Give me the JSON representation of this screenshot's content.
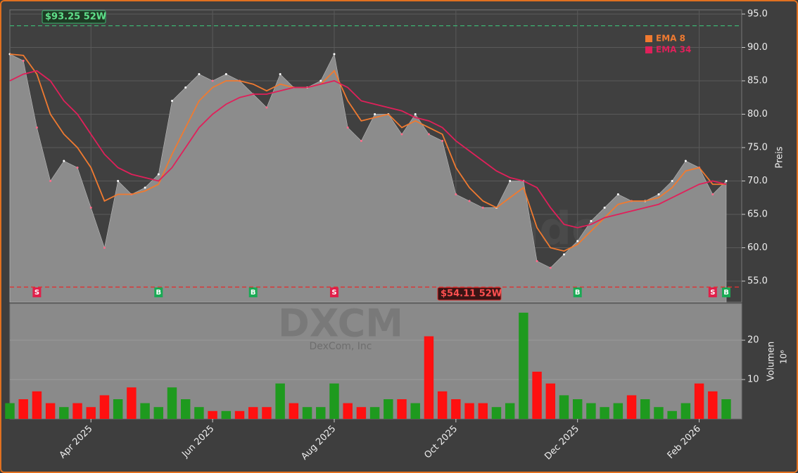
{
  "chart_data": {
    "type": "line",
    "ticker": "DXCM",
    "company": "DexCom, Inc",
    "watermark": "forexsignale.trade",
    "categories": [
      null,
      null,
      null,
      null,
      null,
      null,
      "Apr 2025",
      null,
      null,
      null,
      null,
      null,
      null,
      null,
      null,
      "Jun 2025",
      null,
      null,
      null,
      null,
      null,
      null,
      null,
      null,
      "Aug 2025",
      null,
      null,
      null,
      null,
      null,
      null,
      null,
      null,
      "Oct 2025",
      null,
      null,
      null,
      null,
      null,
      null,
      null,
      null,
      "Dec 2025",
      null,
      null,
      null,
      null,
      null,
      null,
      null,
      null,
      "Feb 2026",
      null,
      null
    ],
    "close": {
      "color": "#8c8c8c",
      "values": [
        89,
        88,
        78,
        70,
        73,
        72,
        66,
        60,
        70,
        68,
        69,
        71,
        82,
        84,
        86,
        85,
        86,
        85,
        83,
        81,
        86,
        84,
        84,
        85,
        89,
        78,
        76,
        80,
        80,
        77,
        80,
        77,
        76,
        68,
        67,
        66,
        66,
        70,
        70,
        58,
        57,
        59,
        61,
        64,
        66,
        68,
        67,
        67,
        68,
        70,
        73,
        72,
        68,
        70
      ]
    },
    "series": [
      {
        "name": "EMA 8",
        "color": "#f07a30",
        "values": [
          89,
          88.8,
          86,
          80,
          77,
          75,
          72,
          67,
          68,
          68,
          68.5,
          69.5,
          74,
          78,
          82,
          84,
          85,
          85,
          84.5,
          83.5,
          84.5,
          84,
          84,
          84.5,
          86.5,
          82,
          79,
          79.5,
          80,
          78,
          79,
          78,
          77,
          72,
          69,
          67,
          66,
          67.5,
          69,
          63,
          60,
          59.5,
          60.5,
          62.5,
          64.5,
          66.5,
          67,
          67,
          67.5,
          69,
          71.5,
          72,
          69.5,
          69.5
        ]
      },
      {
        "name": "EMA 34",
        "color": "#e0205a",
        "values": [
          85,
          86,
          86.5,
          85,
          82,
          80,
          77,
          74,
          72,
          71,
          70.5,
          70,
          72,
          75,
          78,
          80,
          81.5,
          82.5,
          83,
          83,
          83.5,
          84,
          84,
          84.5,
          85,
          84,
          82,
          81.5,
          81,
          80.5,
          79.5,
          79,
          78,
          76,
          74.5,
          73,
          71.5,
          70.5,
          70,
          69,
          66,
          63.5,
          63,
          63.5,
          64.5,
          65,
          65.5,
          66,
          66.5,
          67.5,
          68.5,
          69.5,
          70,
          69.5
        ]
      }
    ],
    "ylabel": "Preis",
    "ylim": [
      51.84,
      95.63
    ],
    "yticks": [
      {
        "value": 55,
        "label": "55.0"
      },
      {
        "value": 60,
        "label": "60.0"
      },
      {
        "value": 65,
        "label": "65.0"
      },
      {
        "value": 70,
        "label": "70.0"
      },
      {
        "value": 75,
        "label": "75.0"
      },
      {
        "value": 80,
        "label": "80.0"
      },
      {
        "value": 85,
        "label": "85.0"
      },
      {
        "value": 90,
        "label": "90.0"
      },
      {
        "value": 95,
        "label": "95.0"
      }
    ],
    "levels": [
      {
        "value": 93.25,
        "label": "$93.25 52W",
        "color": "#3cb371"
      },
      {
        "value": 54.11,
        "label": "$54.11 52W",
        "color": "#e03030"
      }
    ],
    "signals": [
      {
        "label": "S",
        "at": 2
      },
      {
        "label": "B",
        "at": 11
      },
      {
        "label": "B",
        "at": 18
      },
      {
        "label": "S",
        "at": 24
      },
      {
        "label": "B",
        "at": 42
      },
      {
        "label": "S",
        "at": 52
      },
      {
        "label": "B",
        "at": 53
      }
    ],
    "volume": {
      "ylabel": "Volumen",
      "unit": "10⁶",
      "ylim": [
        0,
        29.3
      ],
      "yticks": [
        10,
        20
      ],
      "up_color": "#1e9a1e",
      "down_color": "#ff1010",
      "values": [
        4,
        5,
        7,
        4,
        3,
        4,
        3,
        6,
        5,
        8,
        4,
        3,
        8,
        5,
        3,
        2,
        2,
        2,
        3,
        3,
        9,
        4,
        3,
        3,
        9,
        4,
        3,
        3,
        5,
        5,
        4,
        21,
        7,
        5,
        4,
        4,
        3,
        4,
        27,
        12,
        9,
        6,
        5,
        4,
        3,
        4,
        6,
        5,
        3,
        2,
        4,
        9,
        7,
        5
      ]
    },
    "grid": true
  }
}
